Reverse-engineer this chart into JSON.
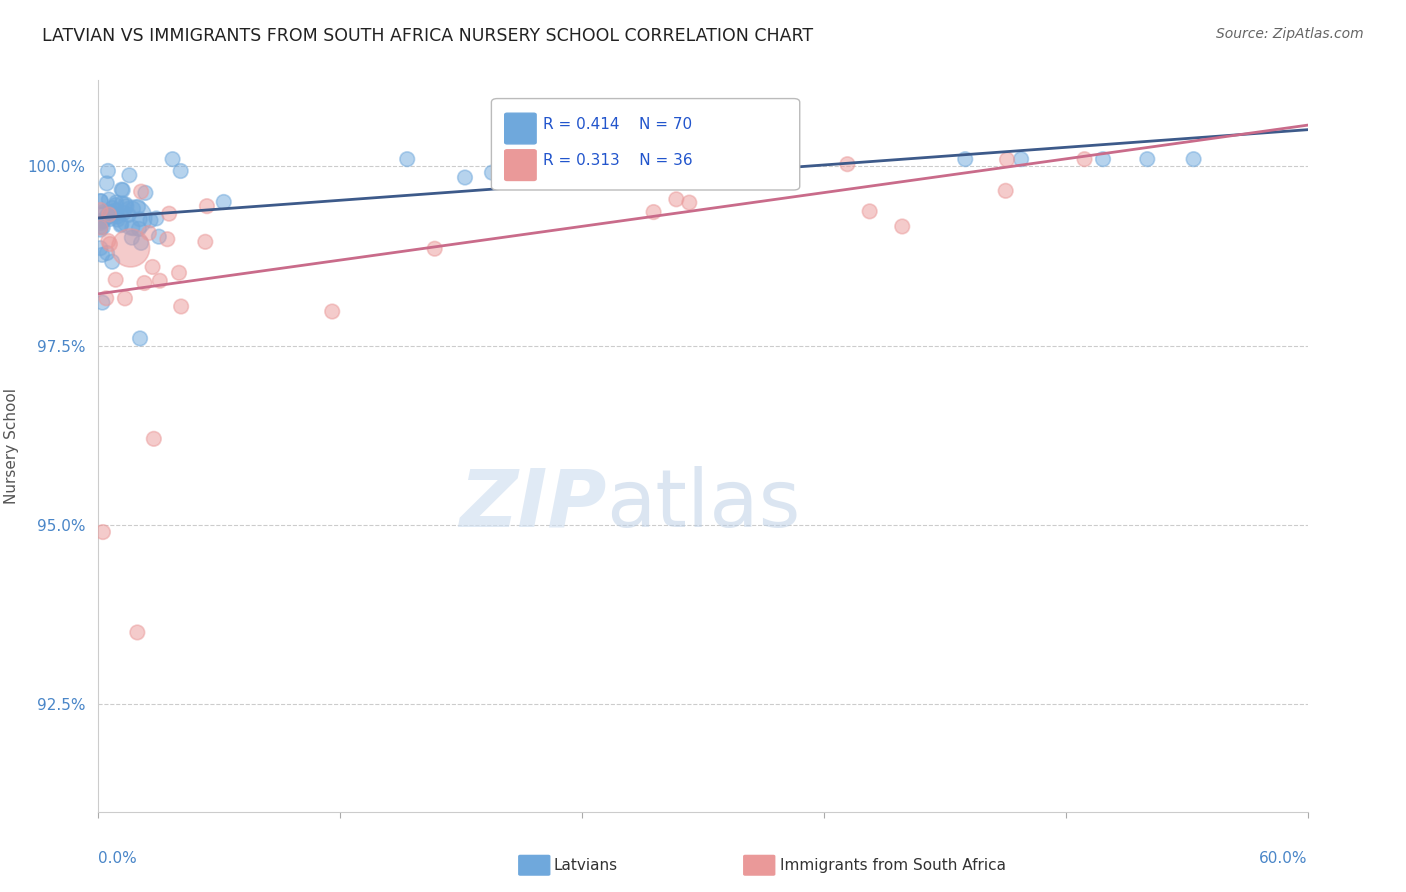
{
  "title": "LATVIAN VS IMMIGRANTS FROM SOUTH AFRICA NURSERY SCHOOL CORRELATION CHART",
  "source": "Source: ZipAtlas.com",
  "ylabel": "Nursery School",
  "yticks": [
    92.5,
    95.0,
    97.5,
    100.0
  ],
  "ytick_labels": [
    "92.5%",
    "95.0%",
    "97.5%",
    "100.0%"
  ],
  "xmin": 0.0,
  "xmax": 0.6,
  "ymin": 91.0,
  "ymax": 101.2,
  "legend_latvians": "Latvians",
  "legend_immigrants": "Immigrants from South Africa",
  "r_latvians": 0.414,
  "n_latvians": 70,
  "r_immigrants": 0.313,
  "n_immigrants": 36,
  "blue_color": "#6fa8dc",
  "pink_color": "#ea9999",
  "blue_line_color": "#3d5a8a",
  "pink_line_color": "#c96b8a",
  "watermark_zip": "ZIP",
  "watermark_atlas": "atlas"
}
